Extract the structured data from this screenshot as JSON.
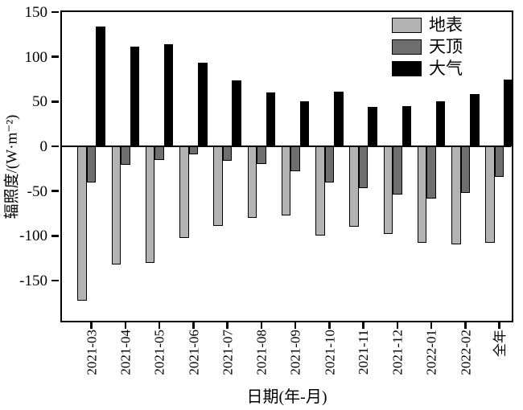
{
  "figure": {
    "background": "#ffffff",
    "axis_color": "#000000"
  },
  "chart_data": {
    "type": "bar",
    "title": "",
    "xlabel": "日期(年-月)",
    "ylabel": "辐照度/(W·m⁻²)",
    "categories": [
      "2021-03",
      "2021-04",
      "2021-05",
      "2021-06",
      "2021-07",
      "2021-08",
      "2021-09",
      "2021-10",
      "2021-11",
      "2021-12",
      "2022-01",
      "2022-02",
      "全年"
    ],
    "series": [
      {
        "key": "surface",
        "name": "地表",
        "color": "#b3b3b3",
        "values": [
          -172,
          -132,
          -130,
          -102,
          -89,
          -80,
          -77,
          -100,
          -90,
          -98,
          -108,
          -110,
          -108
        ]
      },
      {
        "key": "zenith",
        "name": "天顶",
        "color": "#6e6e6e",
        "values": [
          -40,
          -21,
          -15,
          -9,
          -16,
          -20,
          -28,
          -40,
          -47,
          -54,
          -58,
          -52,
          -34
        ]
      },
      {
        "key": "atmosphere",
        "name": "大气",
        "color": "#000000",
        "values": [
          134,
          111,
          114,
          93,
          74,
          60,
          50,
          61,
          44,
          45,
          50,
          58,
          75
        ]
      }
    ],
    "yticks": [
      150,
      100,
      50,
      0,
      -50,
      -100,
      -150
    ],
    "ylim": [
      -194,
      150
    ],
    "grid": false,
    "bar_outline": "#000000",
    "legend_position": "top-right-inside"
  }
}
